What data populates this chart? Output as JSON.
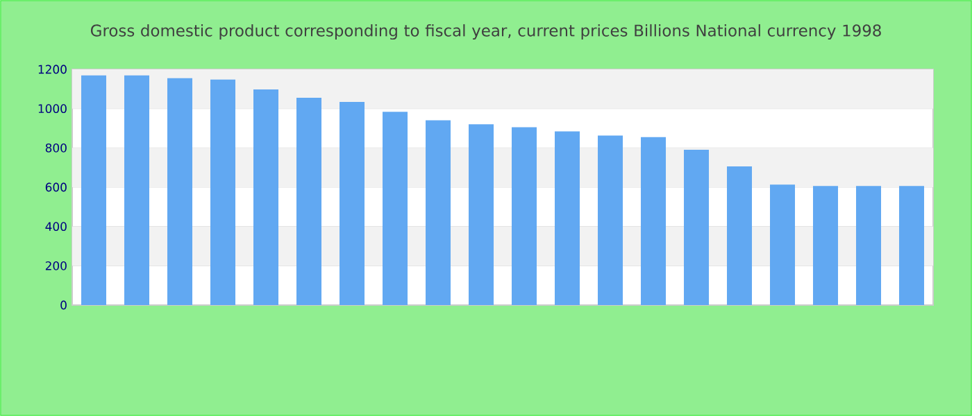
{
  "chart_data": {
    "type": "bar",
    "title": "Gross domestic product corresponding to fiscal year, current prices Billions National currency 1998",
    "categories": [
      null,
      null,
      null,
      null,
      null,
      null,
      null,
      null,
      null,
      null,
      null,
      null,
      null,
      null,
      null,
      null,
      null,
      null,
      null,
      null
    ],
    "values": [
      1169,
      1169,
      1155,
      1148,
      1098,
      1055,
      1034,
      984,
      941,
      920,
      905,
      884,
      863,
      855,
      791,
      706,
      613,
      606,
      606,
      606
    ],
    "color": "#61a8f2",
    "ylim": [
      0,
      1200
    ],
    "yticks": [
      0,
      200,
      400,
      600,
      800,
      1000,
      1200
    ],
    "grid": "y",
    "tick_labels": "y"
  }
}
